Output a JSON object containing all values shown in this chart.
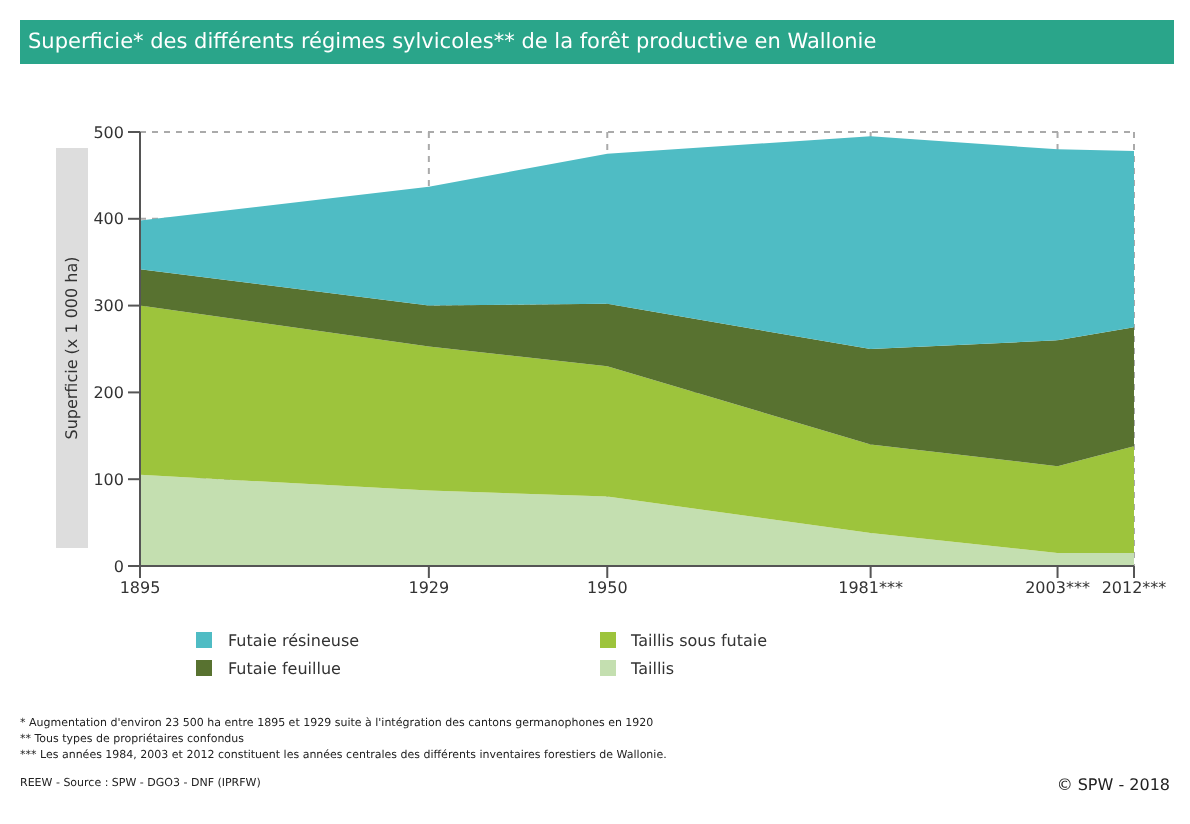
{
  "chart_data": {
    "type": "area",
    "stacked": true,
    "title": "Superficie* des différents régimes sylvicoles** de la forêt productive en Wallonie",
    "ylabel": "Superficie (x 1 000 ha)",
    "x": [
      1895,
      1929,
      1950,
      1981,
      2003,
      2012
    ],
    "xlim": [
      1895,
      2012
    ],
    "xticks": [
      1895,
      1929,
      1950,
      {
        "value": 1981,
        "label": "1981***"
      },
      {
        "value": 2003,
        "label": "2003***"
      },
      {
        "value": 2012,
        "label": "2012***"
      }
    ],
    "ylim": [
      0,
      500
    ],
    "yticks": [
      0,
      100,
      200,
      300,
      400,
      500
    ],
    "grid": true,
    "legend": "bottom",
    "series": [
      {
        "name": "Taillis",
        "color": "#c4dfb0",
        "values": [
          105,
          87,
          80,
          38,
          15,
          15
        ]
      },
      {
        "name": "Taillis sous futaie",
        "color": "#9dc43c",
        "values": [
          195,
          166,
          150,
          102,
          100,
          123
        ]
      },
      {
        "name": "Futaie feuillue",
        "color": "#587230",
        "values": [
          42,
          47,
          72,
          110,
          145,
          137
        ]
      },
      {
        "name": "Futaie résineuse",
        "color": "#4fbcc4",
        "values": [
          56,
          137,
          173,
          245,
          220,
          203
        ]
      }
    ],
    "annotations": [
      "* Augmentation d'environ 23 500 ha entre 1895 et 1929 suite à l'intégration des cantons germanophones en 1920",
      "** Tous types de propriétaires confondus",
      "*** Les années 1984, 2003 et 2012 constituent les années centrales des différents inventaires forestiers de Wallonie.",
      "REEW - Source : SPW - DGO3 - DNF (IPRFW)",
      "© SPW - 2018"
    ]
  }
}
